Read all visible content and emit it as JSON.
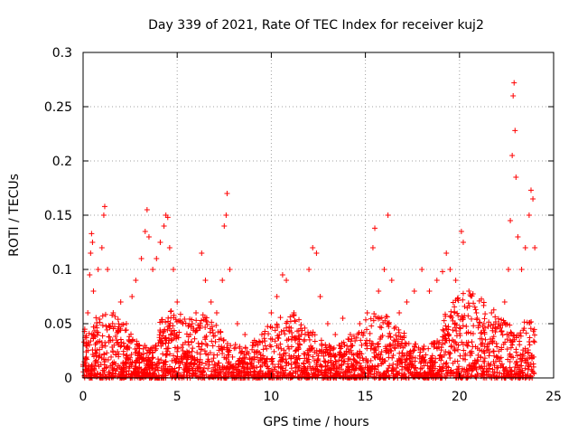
{
  "chart_data": {
    "type": "scatter",
    "title": "Day 339 of 2021, Rate Of TEC Index for receiver kuj2",
    "xlabel": "GPS time / hours",
    "ylabel": "ROTI / TECUs",
    "xlim": [
      0,
      25
    ],
    "ylim": [
      0,
      0.3
    ],
    "xticks": [
      "0",
      "5",
      "10",
      "15",
      "20",
      "25"
    ],
    "yticks": [
      "0",
      "0.05",
      "0.1",
      "0.15",
      "0.2",
      "0.25",
      "0.3"
    ],
    "grid": true,
    "series": [
      {
        "name": "ROTI",
        "color": "#ff0000",
        "marker": "plus",
        "points": [
          [
            0.15,
            0.03
          ],
          [
            0.25,
            0.06
          ],
          [
            0.35,
            0.095
          ],
          [
            0.4,
            0.115
          ],
          [
            0.45,
            0.133
          ],
          [
            0.5,
            0.125
          ],
          [
            0.55,
            0.08
          ],
          [
            0.8,
            0.1
          ],
          [
            1.0,
            0.12
          ],
          [
            1.1,
            0.15
          ],
          [
            1.15,
            0.158
          ],
          [
            1.3,
            0.1
          ],
          [
            1.6,
            0.06
          ],
          [
            2.0,
            0.07
          ],
          [
            2.3,
            0.05
          ],
          [
            2.6,
            0.075
          ],
          [
            2.8,
            0.09
          ],
          [
            3.1,
            0.11
          ],
          [
            3.3,
            0.135
          ],
          [
            3.4,
            0.155
          ],
          [
            3.5,
            0.13
          ],
          [
            3.7,
            0.1
          ],
          [
            3.9,
            0.11
          ],
          [
            4.1,
            0.125
          ],
          [
            4.3,
            0.14
          ],
          [
            4.4,
            0.15
          ],
          [
            4.5,
            0.148
          ],
          [
            4.6,
            0.12
          ],
          [
            4.8,
            0.1
          ],
          [
            5.0,
            0.07
          ],
          [
            5.3,
            0.05
          ],
          [
            5.7,
            0.04
          ],
          [
            6.0,
            0.06
          ],
          [
            6.3,
            0.115
          ],
          [
            6.5,
            0.09
          ],
          [
            6.8,
            0.07
          ],
          [
            7.1,
            0.06
          ],
          [
            7.4,
            0.09
          ],
          [
            7.5,
            0.14
          ],
          [
            7.6,
            0.15
          ],
          [
            7.65,
            0.17
          ],
          [
            7.8,
            0.1
          ],
          [
            8.2,
            0.05
          ],
          [
            8.6,
            0.04
          ],
          [
            9.0,
            0.03
          ],
          [
            9.5,
            0.04
          ],
          [
            10.0,
            0.06
          ],
          [
            10.3,
            0.075
          ],
          [
            10.6,
            0.095
          ],
          [
            10.8,
            0.09
          ],
          [
            11.2,
            0.06
          ],
          [
            11.6,
            0.04
          ],
          [
            12.0,
            0.1
          ],
          [
            12.2,
            0.12
          ],
          [
            12.4,
            0.115
          ],
          [
            12.6,
            0.075
          ],
          [
            13.0,
            0.05
          ],
          [
            13.4,
            0.04
          ],
          [
            13.8,
            0.055
          ],
          [
            14.2,
            0.04
          ],
          [
            14.7,
            0.05
          ],
          [
            15.1,
            0.06
          ],
          [
            15.4,
            0.12
          ],
          [
            15.5,
            0.138
          ],
          [
            15.7,
            0.08
          ],
          [
            16.0,
            0.1
          ],
          [
            16.2,
            0.15
          ],
          [
            16.4,
            0.09
          ],
          [
            16.8,
            0.06
          ],
          [
            17.2,
            0.07
          ],
          [
            17.6,
            0.08
          ],
          [
            18.0,
            0.1
          ],
          [
            18.4,
            0.08
          ],
          [
            18.8,
            0.09
          ],
          [
            19.1,
            0.098
          ],
          [
            19.3,
            0.115
          ],
          [
            19.5,
            0.1
          ],
          [
            19.8,
            0.09
          ],
          [
            20.1,
            0.135
          ],
          [
            20.2,
            0.125
          ],
          [
            20.5,
            0.08
          ],
          [
            20.9,
            0.06
          ],
          [
            21.3,
            0.05
          ],
          [
            21.7,
            0.06
          ],
          [
            22.1,
            0.05
          ],
          [
            22.4,
            0.07
          ],
          [
            22.6,
            0.1
          ],
          [
            22.7,
            0.145
          ],
          [
            22.8,
            0.205
          ],
          [
            22.85,
            0.26
          ],
          [
            22.9,
            0.272
          ],
          [
            22.95,
            0.228
          ],
          [
            23.0,
            0.185
          ],
          [
            23.1,
            0.13
          ],
          [
            23.3,
            0.1
          ],
          [
            23.5,
            0.12
          ],
          [
            23.7,
            0.15
          ],
          [
            23.8,
            0.173
          ],
          [
            23.9,
            0.165
          ],
          [
            24.0,
            0.12
          ]
        ]
      }
    ]
  }
}
